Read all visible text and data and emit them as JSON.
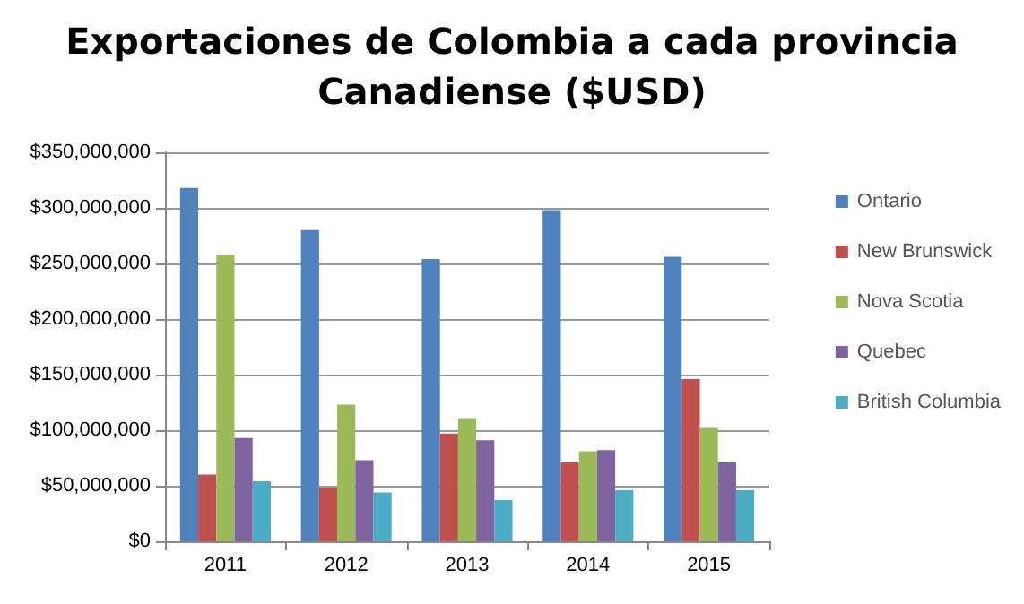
{
  "chart_data": {
    "type": "bar",
    "title": "Exportaciones de Colombia a cada provincia\nCanadiense ($USD)",
    "categories": [
      "2011",
      "2012",
      "2013",
      "2014",
      "2015"
    ],
    "series": [
      {
        "name": "Ontario",
        "color": "#4f81bd",
        "values": [
          318000000,
          280000000,
          254000000,
          298000000,
          256000000
        ]
      },
      {
        "name": "New Brunswick",
        "color": "#c0504d",
        "values": [
          60000000,
          48000000,
          97000000,
          71000000,
          146000000
        ]
      },
      {
        "name": "Nova Scotia",
        "color": "#9bbb59",
        "values": [
          258000000,
          123000000,
          110000000,
          81000000,
          102000000
        ]
      },
      {
        "name": "Quebec",
        "color": "#8064a2",
        "values": [
          93000000,
          73000000,
          91000000,
          82000000,
          71000000
        ]
      },
      {
        "name": "British Columbia",
        "color": "#4bacc6",
        "values": [
          54000000,
          44000000,
          37000000,
          46000000,
          46000000
        ]
      }
    ],
    "ylim": [
      0,
      350000000
    ],
    "yticks": [
      {
        "value": 0,
        "label": "$0"
      },
      {
        "value": 50000000,
        "label": "$50,000,000"
      },
      {
        "value": 100000000,
        "label": "$100,000,000"
      },
      {
        "value": 150000000,
        "label": "$150,000,000"
      },
      {
        "value": 200000000,
        "label": "$200,000,000"
      },
      {
        "value": 250000000,
        "label": "$250,000,000"
      },
      {
        "value": 300000000,
        "label": "$300,000,000"
      },
      {
        "value": 350000000,
        "label": "$350,000,000"
      }
    ],
    "grid": true,
    "legend": "right"
  }
}
